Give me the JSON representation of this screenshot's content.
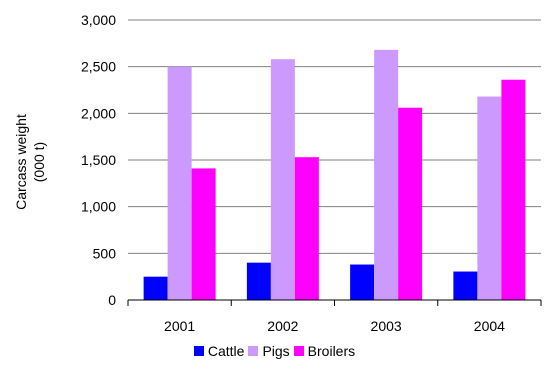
{
  "chart_data": {
    "type": "bar",
    "categories": [
      "2001",
      "2002",
      "2003",
      "2004"
    ],
    "series": [
      {
        "name": "Cattle",
        "color": "#0000ff",
        "values": [
          250,
          400,
          380,
          305
        ]
      },
      {
        "name": "Pigs",
        "color": "#cc99ff",
        "values": [
          2500,
          2580,
          2680,
          2180
        ]
      },
      {
        "name": "Broilers",
        "color": "#ff00ff",
        "values": [
          1410,
          1530,
          2060,
          2360
        ]
      }
    ],
    "ylabel_lines": [
      "Carcass weight",
      "(000 t)"
    ],
    "ylim": [
      0,
      3000
    ],
    "yticks": [
      0,
      500,
      1000,
      1500,
      2000,
      2500,
      3000
    ],
    "ytick_labels": [
      "0",
      "500",
      "1,000",
      "1,500",
      "2,000",
      "2,500",
      "3,000"
    ],
    "grid": true,
    "legend_position": "bottom"
  }
}
